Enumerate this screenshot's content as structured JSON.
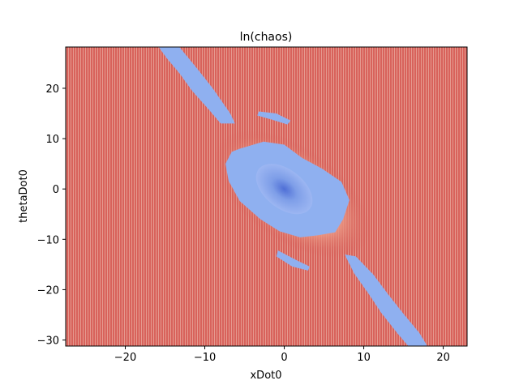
{
  "chart_data": {
    "type": "heatmap",
    "title": "ln(chaos)",
    "xlabel": "xDot0",
    "ylabel": "thetaDot0",
    "xlim": [
      -27.5,
      23
    ],
    "ylim": [
      -31.2,
      28.2
    ],
    "x_ticks": [
      -20,
      -10,
      0,
      10,
      20
    ],
    "y_ticks": [
      -30,
      -20,
      -10,
      0,
      10,
      20
    ],
    "x_tick_labels": [
      "−20",
      "−10",
      "0",
      "10",
      "20"
    ],
    "y_tick_labels": [
      "−30",
      "−20",
      "−10",
      "0",
      "10",
      "20"
    ],
    "colormap": "coolwarm",
    "grid": false,
    "colors": {
      "high": "#d6605a",
      "low": "#8fb0f0",
      "core": "#5a78d8",
      "edge": "#f0a08a"
    }
  }
}
